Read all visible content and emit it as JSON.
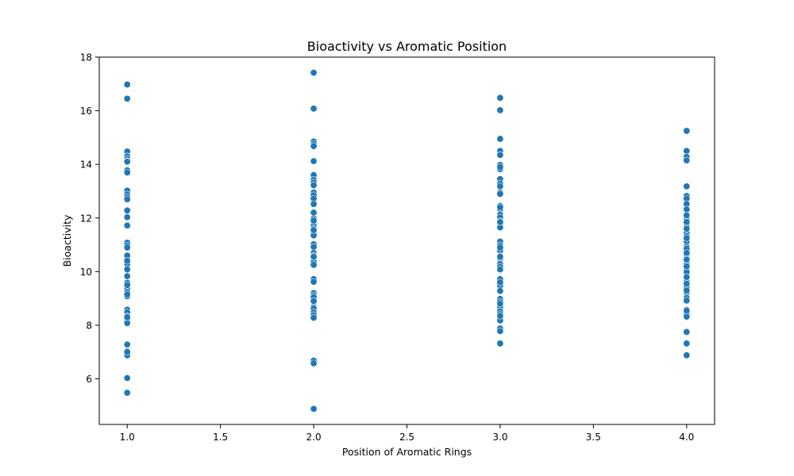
{
  "chart_data": {
    "type": "scatter",
    "title": "Bioactivity vs Aromatic Position",
    "xlabel": "Position of Aromatic Rings",
    "ylabel": "Bioactivity",
    "xlim": [
      0.85,
      4.15
    ],
    "ylim": [
      4.3,
      18.0
    ],
    "xticks": [
      1.0,
      1.5,
      2.0,
      2.5,
      3.0,
      3.5,
      4.0
    ],
    "xtick_labels": [
      "1.0",
      "1.5",
      "2.0",
      "2.5",
      "3.0",
      "3.5",
      "4.0"
    ],
    "yticks": [
      6,
      8,
      10,
      12,
      14,
      16,
      18
    ],
    "ytick_labels": [
      "6",
      "8",
      "10",
      "12",
      "14",
      "16",
      "18"
    ],
    "grid": false,
    "color": "#1f77b4",
    "series": [
      {
        "x": [
          1,
          1,
          1,
          1,
          1,
          1,
          1,
          1,
          1,
          1,
          1,
          1,
          1,
          1,
          1,
          1,
          1,
          1,
          1,
          1,
          1,
          1,
          1,
          1,
          1,
          1,
          1,
          1,
          1,
          1,
          1,
          1,
          1,
          1,
          1,
          1,
          1,
          1,
          1,
          1,
          1,
          1,
          1,
          1,
          1,
          1,
          1,
          1,
          1,
          1
        ],
        "y": [
          16.98,
          16.45,
          14.48,
          14.3,
          14.2,
          14.12,
          13.78,
          13.68,
          13.02,
          12.88,
          12.78,
          12.68,
          12.28,
          12.03,
          11.72,
          11.08,
          10.98,
          10.88,
          10.58,
          10.48,
          10.38,
          10.28,
          10.08,
          9.83,
          9.58,
          9.48,
          9.38,
          9.23,
          9.13,
          9.08,
          8.58,
          8.48,
          8.33,
          8.23,
          8.08,
          7.28,
          7.03,
          6.88,
          6.03,
          5.48,
          14.1,
          13.7,
          12.7,
          10.9,
          10.6,
          9.5,
          9.15,
          8.3,
          7.0,
          10.4
        ]
      },
      {
        "x": [
          2,
          2,
          2,
          2,
          2,
          2,
          2,
          2,
          2,
          2,
          2,
          2,
          2,
          2,
          2,
          2,
          2,
          2,
          2,
          2,
          2,
          2,
          2,
          2,
          2,
          2,
          2,
          2,
          2,
          2,
          2,
          2,
          2,
          2,
          2,
          2,
          2,
          2,
          2,
          2,
          2,
          2,
          2,
          2,
          2,
          2,
          2,
          2,
          2,
          2
        ],
        "y": [
          17.42,
          16.08,
          14.85,
          14.75,
          14.68,
          14.12,
          13.6,
          13.42,
          13.32,
          13.22,
          12.95,
          12.85,
          12.72,
          12.52,
          12.22,
          11.98,
          11.82,
          11.7,
          11.6,
          11.5,
          11.42,
          11.35,
          11.02,
          10.92,
          10.7,
          10.6,
          10.5,
          10.42,
          10.35,
          10.25,
          9.72,
          9.62,
          9.2,
          9.12,
          9.02,
          8.88,
          8.68,
          8.62,
          8.48,
          8.38,
          8.28,
          6.68,
          6.58,
          4.88,
          11.9,
          11.55,
          10.55,
          9.05,
          8.9,
          12.2
        ]
      },
      {
        "x": [
          3,
          3,
          3,
          3,
          3,
          3,
          3,
          3,
          3,
          3,
          3,
          3,
          3,
          3,
          3,
          3,
          3,
          3,
          3,
          3,
          3,
          3,
          3,
          3,
          3,
          3,
          3,
          3,
          3,
          3,
          3,
          3,
          3,
          3,
          3,
          3,
          3,
          3,
          3,
          3,
          3,
          3,
          3,
          3,
          3,
          3,
          3,
          3,
          3,
          3
        ],
        "y": [
          16.48,
          16.02,
          14.95,
          14.5,
          14.35,
          13.98,
          13.82,
          13.45,
          13.28,
          13.18,
          12.95,
          12.88,
          12.45,
          12.32,
          12.12,
          12.02,
          11.88,
          11.78,
          11.65,
          11.12,
          10.98,
          10.78,
          10.58,
          10.48,
          10.28,
          10.18,
          10.08,
          9.72,
          9.55,
          9.48,
          9.28,
          8.98,
          8.88,
          8.68,
          8.52,
          8.42,
          8.28,
          8.18,
          7.88,
          7.78,
          7.32,
          13.9,
          12.9,
          11.85,
          10.55,
          9.6,
          8.8,
          8.35,
          12.4,
          10.9
        ]
      },
      {
        "x": [
          4,
          4,
          4,
          4,
          4,
          4,
          4,
          4,
          4,
          4,
          4,
          4,
          4,
          4,
          4,
          4,
          4,
          4,
          4,
          4,
          4,
          4,
          4,
          4,
          4,
          4,
          4,
          4,
          4,
          4,
          4,
          4,
          4,
          4,
          4,
          4,
          4,
          4,
          4,
          4,
          4,
          4,
          4,
          4,
          4,
          4,
          4,
          4,
          4,
          4
        ],
        "y": [
          15.25,
          14.5,
          14.28,
          14.15,
          13.18,
          12.82,
          12.72,
          12.52,
          12.32,
          11.95,
          11.78,
          11.68,
          11.58,
          11.45,
          11.32,
          11.12,
          10.92,
          10.75,
          10.62,
          10.48,
          10.38,
          10.28,
          10.08,
          9.98,
          9.75,
          9.62,
          9.52,
          9.42,
          9.22,
          9.02,
          8.92,
          8.58,
          8.48,
          8.42,
          8.32,
          7.75,
          7.32,
          6.88,
          11.85,
          11.25,
          10.85,
          10.45,
          10.2,
          9.8,
          9.55,
          9.3,
          8.55,
          12.1,
          11.6,
          10.7
        ]
      }
    ]
  }
}
